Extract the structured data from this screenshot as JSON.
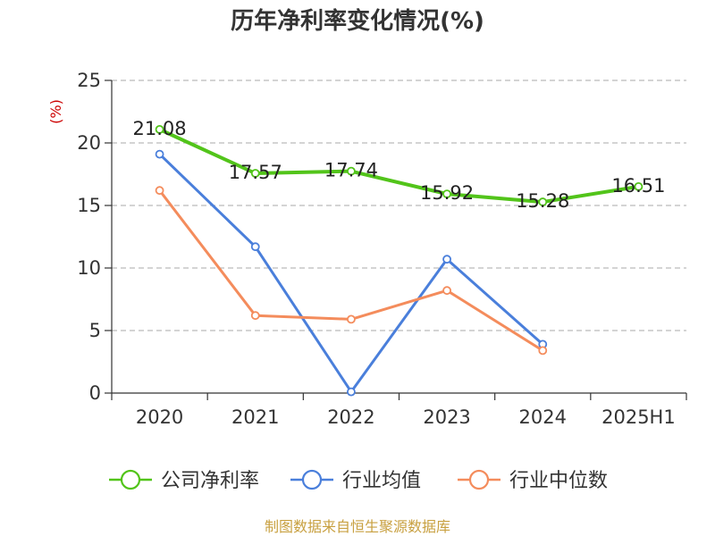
{
  "chart_data": {
    "type": "line",
    "title": "历年净利率变化情况(%)",
    "ylabel": "(%)",
    "xlabel": "",
    "categories": [
      "2020",
      "2021",
      "2022",
      "2023",
      "2024",
      "2025H1"
    ],
    "ylim": [
      0,
      25
    ],
    "yticks": [
      0,
      5,
      10,
      15,
      20,
      25
    ],
    "grid": true,
    "legend_position": "bottom",
    "series": [
      {
        "name": "公司净利率",
        "color": "#52c41a",
        "values": [
          21.08,
          17.57,
          17.74,
          15.92,
          15.28,
          16.51
        ],
        "data_labels": [
          "21.08",
          "17.57",
          "17.74",
          "15.92",
          "15.28",
          "16.51"
        ]
      },
      {
        "name": "行业均值",
        "color": "#4a7fdb",
        "values": [
          19.1,
          11.7,
          0.1,
          10.7,
          3.9,
          null
        ]
      },
      {
        "name": "行业中位数",
        "color": "#f48c5c",
        "values": [
          16.2,
          6.2,
          5.9,
          8.2,
          3.4,
          null
        ]
      }
    ]
  },
  "source": "制图数据来自恒生聚源数据库",
  "colors": {
    "unit_label": "#cc0000",
    "source_text": "#c8a040",
    "axis": "#333333",
    "grid": "#bbbbbb"
  }
}
